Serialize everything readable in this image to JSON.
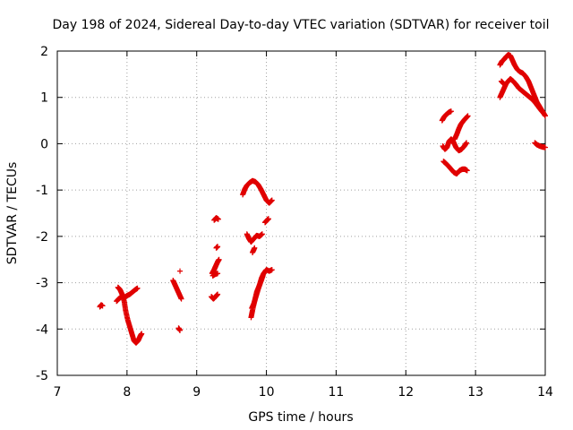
{
  "chart_data": {
    "type": "scatter",
    "title": "Day 198 of 2024, Sidereal Day-to-day VTEC variation (SDTVAR) for receiver toil",
    "xlabel": "GPS time / hours",
    "ylabel": "SDTVAR / TECUs",
    "xlim": [
      7,
      14
    ],
    "ylim": [
      -5,
      2
    ],
    "xticks": [
      "7",
      "8",
      "9",
      "10",
      "11",
      "12",
      "13",
      "14"
    ],
    "yticks": [
      "-5",
      "-4",
      "-3",
      "-2",
      "-1",
      "0",
      "1",
      "2"
    ],
    "grid": true,
    "marker": "+",
    "color": "#e00000",
    "series": [
      {
        "name": "SDTVAR",
        "segments": [
          [
            [
              7.61,
              -3.52
            ],
            [
              7.63,
              -3.48
            ],
            [
              7.65,
              -3.5
            ]
          ],
          [
            [
              7.85,
              -3.4
            ],
            [
              7.88,
              -3.35
            ],
            [
              7.92,
              -3.3
            ],
            [
              7.96,
              -3.32
            ],
            [
              8.0,
              -3.28
            ],
            [
              8.04,
              -3.25
            ],
            [
              8.08,
              -3.2
            ],
            [
              8.12,
              -3.15
            ],
            [
              8.15,
              -3.12
            ]
          ],
          [
            [
              7.87,
              -3.1
            ],
            [
              7.9,
              -3.15
            ],
            [
              7.93,
              -3.25
            ],
            [
              7.96,
              -3.4
            ],
            [
              7.98,
              -3.6
            ],
            [
              8.01,
              -3.8
            ],
            [
              8.04,
              -3.95
            ],
            [
              8.07,
              -4.1
            ],
            [
              8.1,
              -4.25
            ],
            [
              8.13,
              -4.3
            ],
            [
              8.16,
              -4.25
            ],
            [
              8.19,
              -4.15
            ],
            [
              8.21,
              -4.1
            ]
          ],
          [
            [
              8.66,
              -2.95
            ],
            [
              8.69,
              -3.05
            ],
            [
              8.72,
              -3.15
            ],
            [
              8.75,
              -3.25
            ],
            [
              8.78,
              -3.35
            ]
          ],
          [
            [
              8.76,
              -2.75
            ]
          ],
          [
            [
              8.74,
              -3.98
            ],
            [
              8.76,
              -4.03
            ]
          ],
          [
            [
              9.21,
              -3.3
            ],
            [
              9.24,
              -3.35
            ],
            [
              9.27,
              -3.3
            ],
            [
              9.3,
              -3.25
            ]
          ],
          [
            [
              9.22,
              -2.8
            ],
            [
              9.25,
              -2.72
            ],
            [
              9.27,
              -2.65
            ],
            [
              9.3,
              -2.55
            ],
            [
              9.32,
              -2.5
            ]
          ],
          [
            [
              9.23,
              -2.85
            ],
            [
              9.26,
              -2.82
            ],
            [
              9.3,
              -2.8
            ]
          ],
          [
            [
              9.28,
              -2.25
            ],
            [
              9.3,
              -2.22
            ]
          ],
          [
            [
              9.25,
              -1.65
            ],
            [
              9.28,
              -1.6
            ],
            [
              9.31,
              -1.63
            ]
          ],
          [
            [
              9.66,
              -1.1
            ],
            [
              9.69,
              -0.98
            ],
            [
              9.72,
              -0.9
            ],
            [
              9.76,
              -0.84
            ],
            [
              9.8,
              -0.8
            ],
            [
              9.84,
              -0.82
            ],
            [
              9.88,
              -0.88
            ],
            [
              9.92,
              -0.98
            ],
            [
              9.96,
              -1.1
            ],
            [
              10.0,
              -1.22
            ],
            [
              10.04,
              -1.28
            ],
            [
              10.08,
              -1.22
            ]
          ],
          [
            [
              9.72,
              -1.95
            ],
            [
              9.75,
              -2.05
            ],
            [
              9.78,
              -2.12
            ],
            [
              9.82,
              -2.05
            ],
            [
              9.86,
              -1.98
            ],
            [
              9.9,
              -2.0
            ],
            [
              9.94,
              -1.95
            ]
          ],
          [
            [
              9.8,
              -2.35
            ],
            [
              9.83,
              -2.25
            ]
          ],
          [
            [
              9.98,
              -1.7
            ],
            [
              10.01,
              -1.65
            ],
            [
              10.03,
              -1.62
            ]
          ],
          [
            [
              9.78,
              -3.75
            ],
            [
              9.8,
              -3.6
            ],
            [
              9.83,
              -3.4
            ],
            [
              9.86,
              -3.2
            ],
            [
              9.9,
              -3.05
            ],
            [
              9.93,
              -2.9
            ],
            [
              9.96,
              -2.8
            ],
            [
              10.0,
              -2.72
            ],
            [
              10.04,
              -2.75
            ],
            [
              10.08,
              -2.72
            ]
          ],
          [
            [
              9.79,
              -3.55
            ],
            [
              9.82,
              -3.45
            ],
            [
              9.85,
              -3.3
            ],
            [
              9.88,
              -3.15
            ],
            [
              9.92,
              -2.98
            ],
            [
              9.95,
              -2.85
            ]
          ],
          [
            [
              12.52,
              0.5
            ],
            [
              12.55,
              0.58
            ],
            [
              12.58,
              0.63
            ],
            [
              12.62,
              0.68
            ],
            [
              12.65,
              0.7
            ]
          ],
          [
            [
              12.53,
              -0.05
            ],
            [
              12.56,
              -0.12
            ],
            [
              12.59,
              -0.08
            ],
            [
              12.62,
              0.05
            ],
            [
              12.65,
              0.1
            ],
            [
              12.68,
              0.05
            ],
            [
              12.72,
              -0.08
            ],
            [
              12.76,
              -0.15
            ],
            [
              12.8,
              -0.12
            ],
            [
              12.84,
              -0.05
            ],
            [
              12.87,
              0.02
            ]
          ],
          [
            [
              12.54,
              -0.38
            ],
            [
              12.57,
              -0.42
            ],
            [
              12.61,
              -0.48
            ],
            [
              12.65,
              -0.55
            ],
            [
              12.69,
              -0.62
            ],
            [
              12.73,
              -0.65
            ],
            [
              12.77,
              -0.58
            ],
            [
              12.81,
              -0.55
            ],
            [
              12.85,
              -0.55
            ],
            [
              12.88,
              -0.58
            ]
          ],
          [
            [
              12.7,
              0.1
            ],
            [
              12.73,
              0.2
            ],
            [
              12.76,
              0.32
            ],
            [
              12.79,
              0.42
            ],
            [
              12.83,
              0.5
            ],
            [
              12.86,
              0.55
            ],
            [
              12.89,
              0.6
            ]
          ],
          [
            [
              13.35,
              1.7
            ],
            [
              13.38,
              1.78
            ],
            [
              13.41,
              1.82
            ],
            [
              13.44,
              1.88
            ],
            [
              13.47,
              1.92
            ],
            [
              13.5,
              1.9
            ],
            [
              13.53,
              1.8
            ],
            [
              13.56,
              1.7
            ],
            [
              13.6,
              1.6
            ],
            [
              13.64,
              1.55
            ],
            [
              13.68,
              1.52
            ],
            [
              13.72,
              1.45
            ],
            [
              13.76,
              1.35
            ],
            [
              13.8,
              1.2
            ],
            [
              13.84,
              1.05
            ],
            [
              13.88,
              0.9
            ],
            [
              13.92,
              0.8
            ],
            [
              13.96,
              0.7
            ],
            [
              14.0,
              0.6
            ]
          ],
          [
            [
              13.35,
              1.0
            ],
            [
              13.38,
              1.1
            ],
            [
              13.41,
              1.2
            ],
            [
              13.44,
              1.3
            ],
            [
              13.47,
              1.35
            ],
            [
              13.5,
              1.4
            ],
            [
              13.54,
              1.35
            ],
            [
              13.58,
              1.28
            ],
            [
              13.62,
              1.2
            ],
            [
              13.66,
              1.15
            ],
            [
              13.7,
              1.1
            ],
            [
              13.74,
              1.05
            ],
            [
              13.78,
              1.0
            ],
            [
              13.82,
              0.95
            ],
            [
              13.86,
              0.88
            ],
            [
              13.9,
              0.8
            ],
            [
              13.94,
              0.72
            ],
            [
              13.98,
              0.65
            ]
          ],
          [
            [
              13.37,
              1.35
            ],
            [
              13.4,
              1.3
            ]
          ],
          [
            [
              13.85,
              0.02
            ],
            [
              13.88,
              -0.02
            ],
            [
              13.92,
              -0.05
            ],
            [
              13.96,
              -0.07
            ],
            [
              14.0,
              -0.08
            ]
          ]
        ]
      }
    ]
  }
}
